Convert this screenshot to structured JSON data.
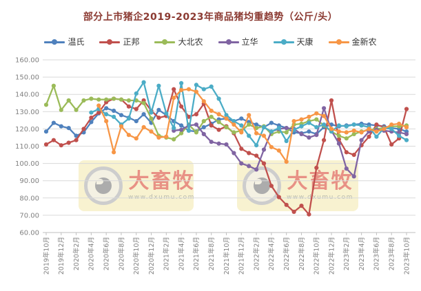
{
  "watermark": {
    "brand": "大畜牧",
    "url": "www.dxumu.com"
  },
  "chart_data": {
    "type": "line",
    "title": "部分上市猪企2019-2023年商品猪均重趋势（公斤/头）",
    "xlabel": "",
    "ylabel": "",
    "ylim": [
      60,
      160
    ],
    "ytick_interval": 10,
    "ytick_format": "two-decimals",
    "grid": "horizontal",
    "legend_position": "top",
    "xtick_every": 2,
    "categories": [
      "2019年10月",
      "2019年11月",
      "2019年12月",
      "2020年1月",
      "2020年2月",
      "2020年3月",
      "2020年4月",
      "2020年5月",
      "2020年6月",
      "2020年7月",
      "2020年8月",
      "2020年9月",
      "2020年10月",
      "2020年11月",
      "2020年12月",
      "2021年1月",
      "2021年2月",
      "2021年3月",
      "2021年4月",
      "2021年5月",
      "2021年6月",
      "2021年7月",
      "2021年8月",
      "2021年9月",
      "2021年10月",
      "2021年11月",
      "2021年12月",
      "2022年1月",
      "2022年2月",
      "2022年3月",
      "2022年4月",
      "2022年5月",
      "2022年6月",
      "2022年7月",
      "2022年8月",
      "2022年9月",
      "2022年10月",
      "2022年11月",
      "2022年12月",
      "2023年1月",
      "2023年2月",
      "2023年3月",
      "2023年4月",
      "2023年5月",
      "2023年6月",
      "2023年7月",
      "2023年8月",
      "2023年9月",
      "2023年10月"
    ],
    "series": [
      {
        "name": "温氏",
        "color": "#4f81bd",
        "values": [
          118.5,
          123.5,
          121.5,
          120.5,
          116,
          118,
          124,
          129,
          132,
          130.5,
          128,
          126.5,
          124.5,
          128.5,
          123.5,
          131,
          128,
          124.5,
          122,
          119,
          118.5,
          121,
          123,
          125.5,
          126,
          124.5,
          126,
          124,
          122.5,
          121,
          123.5,
          122,
          120.5,
          118,
          117.5,
          118.5,
          117,
          121,
          122.5,
          121.5,
          122,
          122.5,
          123,
          122.5,
          122,
          121.5,
          120.5,
          120,
          118.5
        ]
      },
      {
        "name": "正邦",
        "color": "#c0504d",
        "values": [
          111,
          113.5,
          110.5,
          112,
          113.5,
          120,
          126.5,
          129.5,
          135.5,
          137.5,
          137,
          133,
          131.5,
          136.5,
          130.5,
          126.5,
          127.5,
          143,
          133,
          127,
          128.5,
          134.5,
          122,
          119.5,
          121.5,
          117.5,
          108.5,
          106,
          104.5,
          100,
          87,
          80.5,
          76,
          72,
          75.5,
          70.5,
          97.5,
          113.5,
          136.5,
          114,
          106.5,
          105,
          110.5,
          115.5,
          122.5,
          121,
          111,
          114.5,
          131.5
        ]
      },
      {
        "name": "大北农",
        "color": "#9bbb59",
        "values": [
          134,
          145,
          131,
          136.5,
          131,
          136.5,
          137.5,
          137,
          137,
          137.5,
          137,
          136.5,
          136.5,
          135,
          126,
          116,
          115,
          114,
          117.5,
          122.5,
          118,
          124.5,
          127,
          124,
          121,
          118,
          119,
          122.5,
          120.5,
          121.5,
          117,
          118.5,
          118,
          122.5,
          123,
          124.5,
          125.5,
          122,
          118.5,
          116,
          114.5,
          117,
          118.5,
          119.5,
          120,
          120.5,
          121.5,
          121.5,
          122
        ]
      },
      {
        "name": "立华",
        "color": "#8064a2",
        "values": [
          null,
          null,
          null,
          null,
          null,
          null,
          null,
          null,
          null,
          null,
          null,
          null,
          null,
          null,
          null,
          null,
          null,
          119,
          119.5,
          122,
          122.5,
          117,
          112.5,
          111.5,
          111,
          106,
          100,
          98.5,
          96.5,
          108,
          118.5,
          120,
          120.5,
          120,
          117,
          115,
          116.5,
          132,
          119,
          111.5,
          97,
          92.5,
          113.5,
          118.5,
          119.5,
          119,
          118.5,
          118,
          117
        ]
      },
      {
        "name": "天康",
        "color": "#4bacc6",
        "values": [
          null,
          null,
          null,
          null,
          null,
          null,
          129.5,
          131.5,
          128.5,
          127,
          122.5,
          126,
          140.5,
          147,
          129.5,
          145,
          129,
          120.5,
          146.5,
          119,
          145.5,
          143,
          144.5,
          137.5,
          128,
          124.5,
          122,
          116,
          110.5,
          121,
          118.5,
          120.5,
          113,
          119.5,
          121.5,
          123.5,
          121,
          122.5,
          118.5,
          122,
          121.5,
          122.5,
          122,
          121,
          115.5,
          120.5,
          120,
          116,
          113.5
        ]
      },
      {
        "name": "金新农",
        "color": "#f79646",
        "values": [
          null,
          null,
          null,
          null,
          null,
          null,
          null,
          133.5,
          124.5,
          106.5,
          121.5,
          116.5,
          114.5,
          121,
          118.5,
          115,
          115.5,
          138,
          142.5,
          143,
          141.5,
          136,
          130.5,
          128.5,
          126,
          122.5,
          118,
          128,
          117.5,
          116,
          109.5,
          107.5,
          101,
          124.5,
          125.5,
          127,
          129,
          127.5,
          120,
          118.5,
          118,
          119,
          118,
          120,
          118.5,
          120,
          122.5,
          123,
          121
        ]
      }
    ]
  }
}
